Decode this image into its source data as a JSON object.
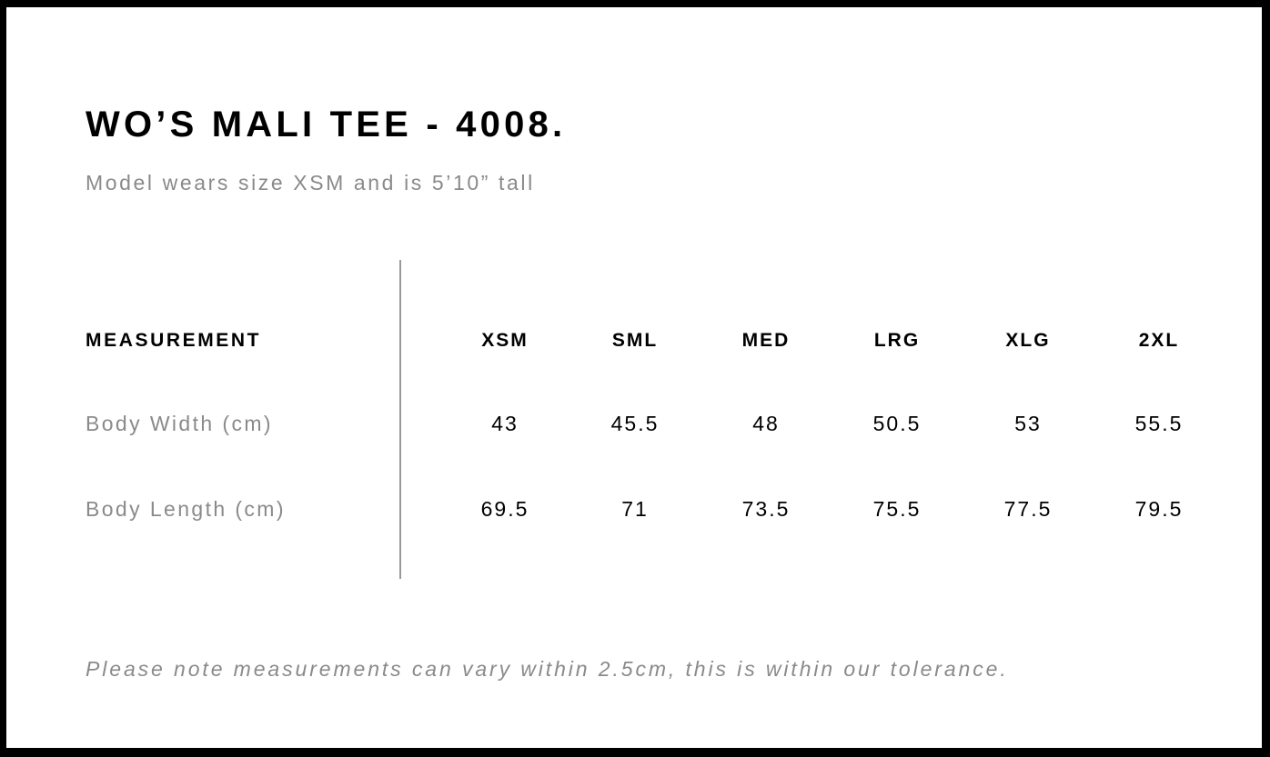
{
  "title": "WO’S MALI TEE - 4008.",
  "subtitle": "Model wears size XSM and is 5’10” tall",
  "table": {
    "header_label": "MEASUREMENT",
    "sizes": [
      "XSM",
      "SML",
      "MED",
      "LRG",
      "XLG",
      "2XL"
    ],
    "rows": [
      {
        "label": "Body Width (cm)",
        "values": [
          "43",
          "45.5",
          "48",
          "50.5",
          "53",
          "55.5"
        ]
      },
      {
        "label": "Body Length (cm)",
        "values": [
          "69.5",
          "71",
          "73.5",
          "75.5",
          "77.5",
          "79.5"
        ]
      }
    ]
  },
  "note": "Please note measurements can vary within 2.5cm, this is within our tolerance."
}
